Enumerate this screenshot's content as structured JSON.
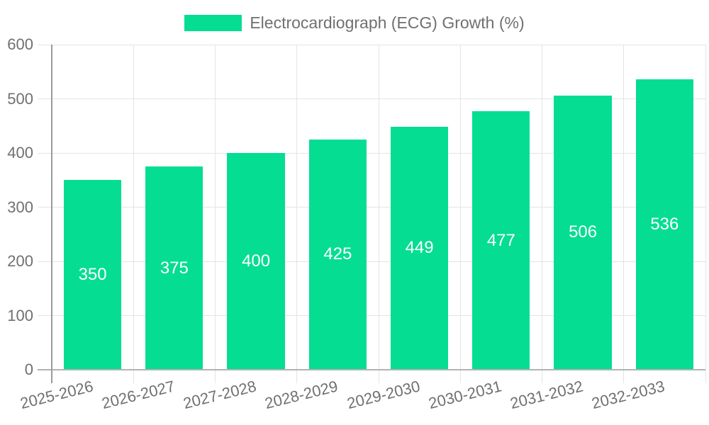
{
  "chart_data": {
    "type": "bar",
    "title": "Electrocardiograph (ECG) Growth (%)",
    "legend": {
      "label": "Electrocardiograph (ECG) Growth (%)",
      "position": "top-center"
    },
    "categories": [
      "2025-2026",
      "2026-2027",
      "2027-2028",
      "2028-2029",
      "2029-2030",
      "2030-2031",
      "2031-2032",
      "2032-2033"
    ],
    "values": [
      350,
      375,
      400,
      425,
      449,
      477,
      506,
      536
    ],
    "xlabel": "",
    "ylabel": "",
    "ylim": [
      0,
      600
    ],
    "y_tick_step": 100,
    "y_tick_labels": [
      "0",
      "100",
      "200",
      "300",
      "400",
      "500",
      "600"
    ],
    "grid": {
      "horizontal": true,
      "vertical_category_boundaries": true
    },
    "bar_value_labels_inside": true,
    "x_label_rotation_deg": -14,
    "colors": {
      "bar": "#05DD93",
      "bar_label_text": "#ffffff",
      "gridline": "#e4e4e4",
      "y_axis_line": "#9a9a9a",
      "x_baseline": "#b3b3b3",
      "axis_text": "#707070",
      "background": "#ffffff"
    }
  }
}
